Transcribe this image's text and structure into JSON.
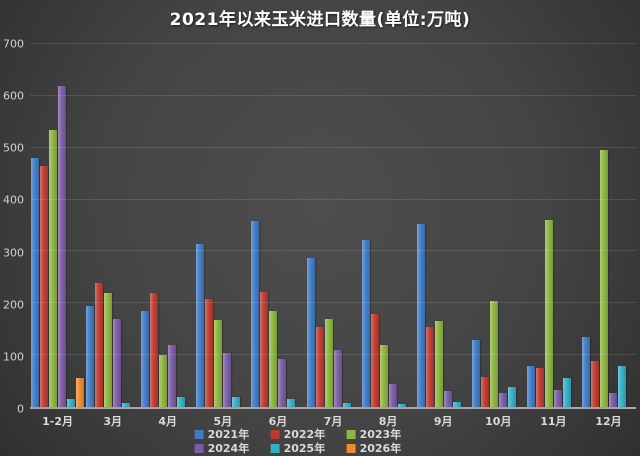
{
  "chart_data": {
    "type": "bar",
    "title": "2021年以来玉米进口数量(单位:万吨)",
    "xlabel": "",
    "ylabel": "",
    "ylim": [
      0,
      700
    ],
    "yticks": [
      0,
      100,
      200,
      300,
      400,
      500,
      600,
      700
    ],
    "grid": true,
    "legend_position": "bottom",
    "categories": [
      "1-2月",
      "3月",
      "4月",
      "5月",
      "6月",
      "7月",
      "8月",
      "9月",
      "10月",
      "11月",
      "12月"
    ],
    "series": [
      {
        "name": "2021年",
        "color": "#3E7CC7",
        "values": [
          480,
          195,
          186,
          315,
          358,
          287,
          322,
          352,
          130,
          80,
          135
        ]
      },
      {
        "name": "2022年",
        "color": "#C0392E",
        "values": [
          465,
          240,
          220,
          208,
          222,
          155,
          180,
          155,
          57,
          75,
          88
        ]
      },
      {
        "name": "2023年",
        "color": "#8DB73E",
        "values": [
          535,
          220,
          100,
          167,
          186,
          170,
          120,
          165,
          205,
          360,
          495
        ]
      },
      {
        "name": "2024年",
        "color": "#7A5BA5",
        "values": [
          620,
          170,
          120,
          105,
          92,
          110,
          45,
          30,
          27,
          32,
          27
        ]
      },
      {
        "name": "2025年",
        "color": "#33AFC6",
        "values": [
          16,
          8,
          20,
          20,
          15,
          8,
          5,
          10,
          38,
          55,
          80
        ]
      },
      {
        "name": "2026年",
        "color": "#F08B2D",
        "values": [
          55,
          0,
          0,
          0,
          0,
          0,
          0,
          0,
          0,
          0,
          0
        ]
      }
    ]
  }
}
